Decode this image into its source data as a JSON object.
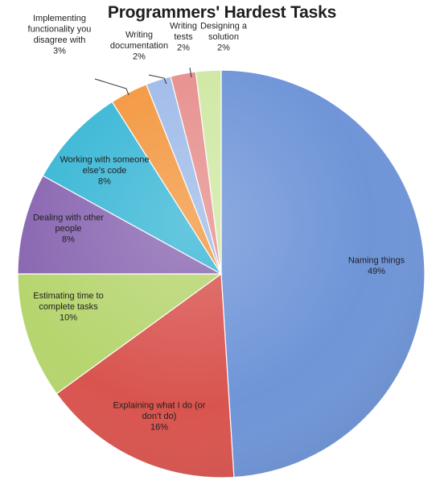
{
  "chart_data": {
    "type": "pie",
    "title": "Programmers' Hardest Tasks",
    "slices": [
      {
        "label": "Naming things",
        "value": 49,
        "value_label": "49%",
        "color": "#6f95d8"
      },
      {
        "label": "Explaining what I do (or don’t do)",
        "value": 16,
        "value_label": "16%",
        "color": "#d9544f"
      },
      {
        "label": "Estimating time to complete tasks",
        "value": 10,
        "value_label": "10%",
        "color": "#b6d56e"
      },
      {
        "label": "Dealing with other people",
        "value": 8,
        "value_label": "8%",
        "color": "#8a67b2"
      },
      {
        "label": "Working with someone else’s code",
        "value": 8,
        "value_label": "8%",
        "color": "#3ab7d6"
      },
      {
        "label": "Implementing functionality you disagree with",
        "value": 3,
        "value_label": "3%",
        "color": "#f3973f"
      },
      {
        "label": "Writing documentation",
        "value": 2,
        "value_label": "2%",
        "color": "#9fbbe9"
      },
      {
        "label": "Writing tests",
        "value": 2,
        "value_label": "2%",
        "color": "#e68f8d"
      },
      {
        "label": "Designing a solution",
        "value": 2,
        "value_label": "2%",
        "color": "#cfe8a3"
      }
    ]
  }
}
